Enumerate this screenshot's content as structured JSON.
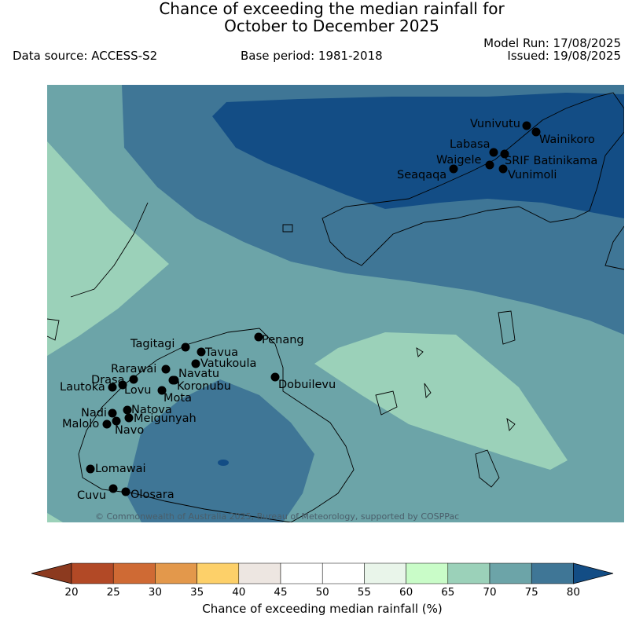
{
  "header": {
    "title_line1": "Chance of exceeding the median rainfall for",
    "title_line2": "October to December 2025",
    "data_source": "Data source: ACCESS-S2",
    "base_period": "Base period: 1981-2018",
    "model_run": "Model Run: 17/08/2025",
    "issued": "Issued: 19/08/2025"
  },
  "map": {
    "copyright": "© Commonwealth of Australia 2025, Bureau of Meteorology, supported by COSPPac",
    "stations": [
      {
        "name": "Vunivutu"
      },
      {
        "name": "Wainikoro"
      },
      {
        "name": "Labasa"
      },
      {
        "name": "Waigele"
      },
      {
        "name": "SRIF Batinikama"
      },
      {
        "name": "Seaqaqa"
      },
      {
        "name": "Vunimoli"
      },
      {
        "name": "Tagitagi"
      },
      {
        "name": "Tavua"
      },
      {
        "name": "Penang"
      },
      {
        "name": "Vatukoula"
      },
      {
        "name": "Rarawai"
      },
      {
        "name": "Navatu"
      },
      {
        "name": "Drasa"
      },
      {
        "name": "Koronubu"
      },
      {
        "name": "Lautoka"
      },
      {
        "name": "Lovu"
      },
      {
        "name": "Dobuilevu"
      },
      {
        "name": "Mota"
      },
      {
        "name": "Natova"
      },
      {
        "name": "Nadi"
      },
      {
        "name": "Meigunyah"
      },
      {
        "name": "Malolo"
      },
      {
        "name": "Navo"
      },
      {
        "name": "Lomawai"
      },
      {
        "name": "Cuvu"
      },
      {
        "name": "Olosara"
      }
    ],
    "colors": {
      "70-75": "#6ca4a8",
      "75-80": "#3f7696",
      "80+": "#134d85",
      "65-70": "#9bd1b9"
    }
  },
  "colorbar": {
    "label": "Chance of exceeding median rainfall (%)",
    "ticks": [
      "20",
      "25",
      "30",
      "35",
      "40",
      "45",
      "50",
      "55",
      "60",
      "65",
      "70",
      "75",
      "80"
    ],
    "colors": [
      "#b24926",
      "#cf6a34",
      "#e3984b",
      "#fdd069",
      "#ede6e1",
      "#ffffff",
      "#ffffff",
      "#e9f5ea",
      "#c9fcc8",
      "#9bd1b9",
      "#6ca4a8",
      "#3f7696"
    ],
    "under_color": "#8c3a1f",
    "over_color": "#134d85"
  }
}
